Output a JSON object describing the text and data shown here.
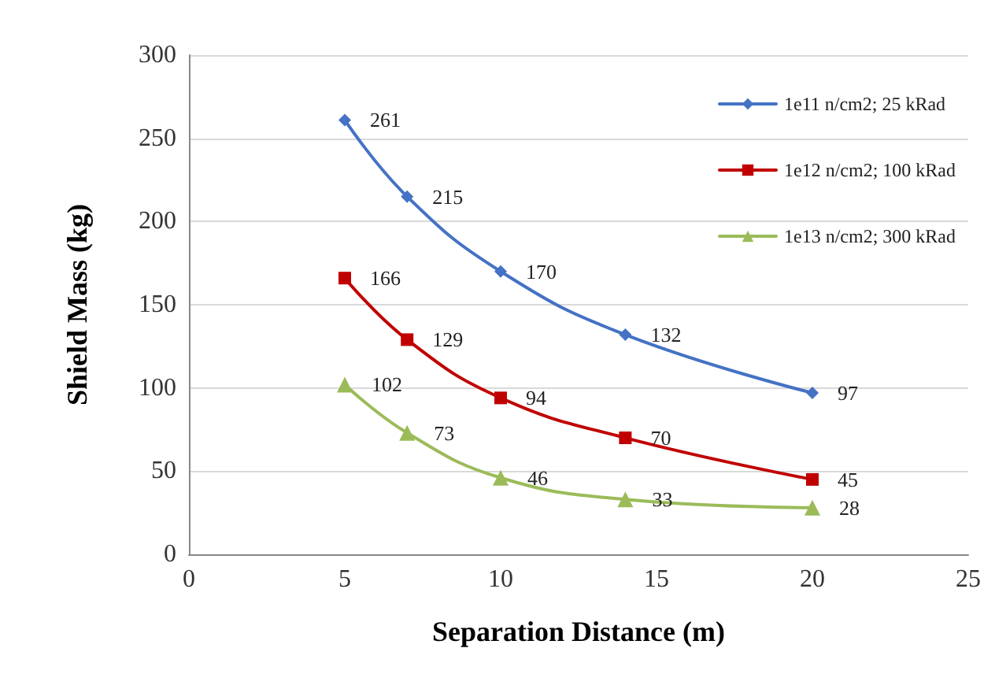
{
  "chart_data": {
    "type": "line",
    "xlabel": "Separation Distance (m)",
    "ylabel": "Shield Mass (kg)",
    "x": [
      5,
      7,
      10,
      14,
      20
    ],
    "series": [
      {
        "name": "1e11 n/cm2; 25 kRad",
        "color": "#4472c4",
        "marker": "diamond",
        "values": [
          261,
          215,
          170,
          132,
          97
        ]
      },
      {
        "name": "1e12 n/cm2; 100 kRad",
        "color": "#c00000",
        "marker": "square",
        "values": [
          166,
          129,
          94,
          70,
          45
        ]
      },
      {
        "name": "1e13 n/cm2; 300 kRad",
        "color": "#9bbb59",
        "marker": "triangle",
        "values": [
          102,
          73,
          46,
          33,
          28
        ]
      }
    ],
    "xlim": [
      0,
      25
    ],
    "xticks": [
      0,
      5,
      10,
      15,
      20,
      25
    ],
    "ylim": [
      0,
      300
    ],
    "yticks": [
      0,
      50,
      100,
      150,
      200,
      250,
      300
    ],
    "grid": "y",
    "legend": "top right",
    "data_labels": true,
    "line_style": "solid"
  }
}
